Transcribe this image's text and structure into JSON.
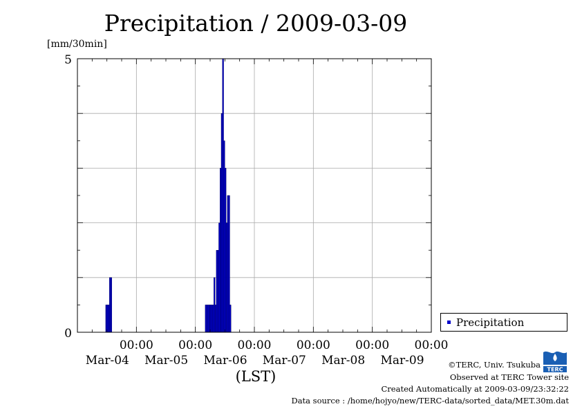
{
  "chart_data": {
    "type": "bar",
    "title": "Precipitation / 2009-03-09",
    "ylabel": "[mm/30min]",
    "xlabel": "(LST)",
    "ylim": [
      0,
      5
    ],
    "y_tick_labels": [
      "5",
      "0"
    ],
    "grid": true,
    "legend_position": "right-bottom",
    "series": [
      {
        "name": "Precipitation",
        "color": "#0000cc"
      }
    ],
    "x_tick_labels": [
      {
        "time": "00:00",
        "date": "Mar-04"
      },
      {
        "time": "00:00",
        "date": "Mar-05"
      },
      {
        "time": "00:00",
        "date": "Mar-06"
      },
      {
        "time": "00:00",
        "date": "Mar-07"
      },
      {
        "time": "00:00",
        "date": "Mar-08"
      },
      {
        "time": "00:00",
        "date": "Mar-09"
      }
    ],
    "bars": [
      {
        "time": "2009-03-03 11:30",
        "value": 0.5
      },
      {
        "time": "2009-03-03 12:00",
        "value": 0.5
      },
      {
        "time": "2009-03-03 12:30",
        "value": 0.5
      },
      {
        "time": "2009-03-03 13:00",
        "value": 1.0
      },
      {
        "time": "2009-03-03 13:30",
        "value": 1.0
      },
      {
        "time": "2009-03-05 04:00",
        "value": 0.5
      },
      {
        "time": "2009-03-05 04:30",
        "value": 0.5
      },
      {
        "time": "2009-03-05 05:00",
        "value": 0.5
      },
      {
        "time": "2009-03-05 05:30",
        "value": 0.5
      },
      {
        "time": "2009-03-05 06:00",
        "value": 0.5
      },
      {
        "time": "2009-03-05 06:30",
        "value": 0.5
      },
      {
        "time": "2009-03-05 07:00",
        "value": 0.5
      },
      {
        "time": "2009-03-05 07:30",
        "value": 1.0
      },
      {
        "time": "2009-03-05 08:00",
        "value": 0.5
      },
      {
        "time": "2009-03-05 08:30",
        "value": 1.5
      },
      {
        "time": "2009-03-05 09:00",
        "value": 1.5
      },
      {
        "time": "2009-03-05 09:30",
        "value": 2.0
      },
      {
        "time": "2009-03-05 10:00",
        "value": 3.0
      },
      {
        "time": "2009-03-05 10:30",
        "value": 4.0
      },
      {
        "time": "2009-03-05 11:00",
        "value": 5.0
      },
      {
        "time": "2009-03-05 11:30",
        "value": 3.5
      },
      {
        "time": "2009-03-05 12:00",
        "value": 3.0
      },
      {
        "time": "2009-03-05 12:30",
        "value": 2.0
      },
      {
        "time": "2009-03-05 13:00",
        "value": 2.5
      },
      {
        "time": "2009-03-05 13:30",
        "value": 2.5
      },
      {
        "time": "2009-03-05 14:00",
        "value": 0.5
      }
    ]
  },
  "legend": {
    "label": "Precipitation"
  },
  "credits": {
    "line1": "©TERC, Univ. Tsukuba",
    "line2": "Observed at TERC Tower site",
    "line3": "Created Automatically at 2009-03-09/23:32:22",
    "line4": "Data source : /home/hojyo/new/TERC-data/sorted_data/MET.30m.dat"
  },
  "logo": {
    "text": "TERC",
    "icon": "terc-logo-icon"
  }
}
